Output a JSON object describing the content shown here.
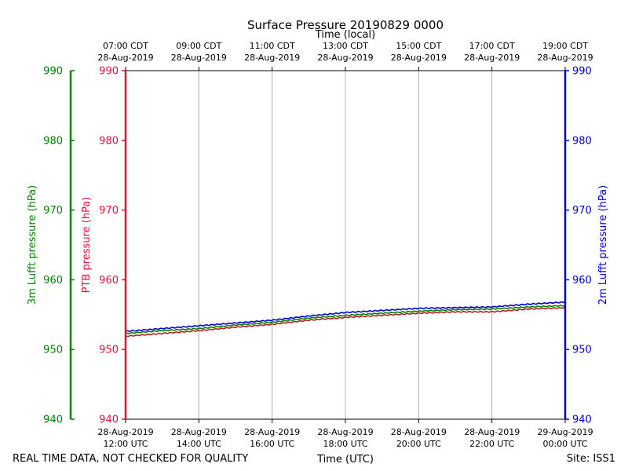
{
  "chart_data": {
    "type": "line",
    "title": "Surface Pressure 20190829 0000",
    "xlabel_top": "Time (local)",
    "xlabel_bottom": "Time (UTC)",
    "footer_left": "REAL TIME DATA, NOT CHECKED FOR QUALITY",
    "footer_right": "Site: ISS1",
    "x_range_hours_utc": [
      12,
      24
    ],
    "ylim": [
      940,
      990
    ],
    "y_ticks": [
      940,
      950,
      960,
      970,
      980,
      990
    ],
    "grid": "vertical",
    "bottom_ticks": [
      {
        "hour": 12,
        "date": "28-Aug-2019",
        "time": "12:00 UTC"
      },
      {
        "hour": 14,
        "date": "28-Aug-2019",
        "time": "14:00 UTC"
      },
      {
        "hour": 16,
        "date": "28-Aug-2019",
        "time": "16:00 UTC"
      },
      {
        "hour": 18,
        "date": "28-Aug-2019",
        "time": "18:00 UTC"
      },
      {
        "hour": 20,
        "date": "28-Aug-2019",
        "time": "20:00 UTC"
      },
      {
        "hour": 22,
        "date": "28-Aug-2019",
        "time": "22:00 UTC"
      },
      {
        "hour": 24,
        "date": "29-Aug-2019",
        "time": "00:00 UTC"
      }
    ],
    "top_ticks": [
      {
        "hour": 12,
        "time": "07:00 CDT",
        "date": "28-Aug-2019"
      },
      {
        "hour": 14,
        "time": "09:00 CDT",
        "date": "28-Aug-2019"
      },
      {
        "hour": 16,
        "time": "11:00 CDT",
        "date": "28-Aug-2019"
      },
      {
        "hour": 18,
        "time": "13:00 CDT",
        "date": "28-Aug-2019"
      },
      {
        "hour": 20,
        "time": "15:00 CDT",
        "date": "28-Aug-2019"
      },
      {
        "hour": 22,
        "time": "17:00 CDT",
        "date": "28-Aug-2019"
      },
      {
        "hour": 24,
        "time": "19:00 CDT",
        "date": "28-Aug-2019"
      }
    ],
    "axes": {
      "outer_left": {
        "label": "3m Lufft pressure (hPa)",
        "color": "#008000"
      },
      "inner_left": {
        "label": "PTB pressure (hPa)",
        "color": "#dc143c"
      },
      "right": {
        "label": "2m Lufft pressure (hPa)",
        "color": "#0000cd"
      }
    },
    "series": [
      {
        "name": "2m Lufft pressure",
        "color": "#0000cd",
        "x": [
          12,
          13,
          14,
          15,
          16,
          17,
          18,
          19,
          20,
          21,
          22,
          23,
          24
        ],
        "values": [
          952.6,
          953.0,
          953.4,
          953.8,
          954.2,
          954.8,
          955.3,
          955.6,
          955.9,
          956.0,
          956.1,
          956.5,
          956.8
        ]
      },
      {
        "name": "3m Lufft pressure",
        "color": "#008000",
        "x": [
          12,
          13,
          14,
          15,
          16,
          17,
          18,
          19,
          20,
          21,
          22,
          23,
          24
        ],
        "values": [
          952.3,
          952.7,
          953.0,
          953.5,
          953.9,
          954.5,
          954.9,
          955.2,
          955.5,
          955.7,
          955.8,
          956.1,
          956.3
        ]
      },
      {
        "name": "PTB pressure",
        "color": "#b22222",
        "x": [
          12,
          13,
          14,
          15,
          16,
          17,
          18,
          19,
          20,
          21,
          22,
          23,
          24
        ],
        "values": [
          951.9,
          952.3,
          952.7,
          953.2,
          953.6,
          954.2,
          954.6,
          954.9,
          955.2,
          955.4,
          955.4,
          955.8,
          956.0
        ]
      }
    ]
  }
}
